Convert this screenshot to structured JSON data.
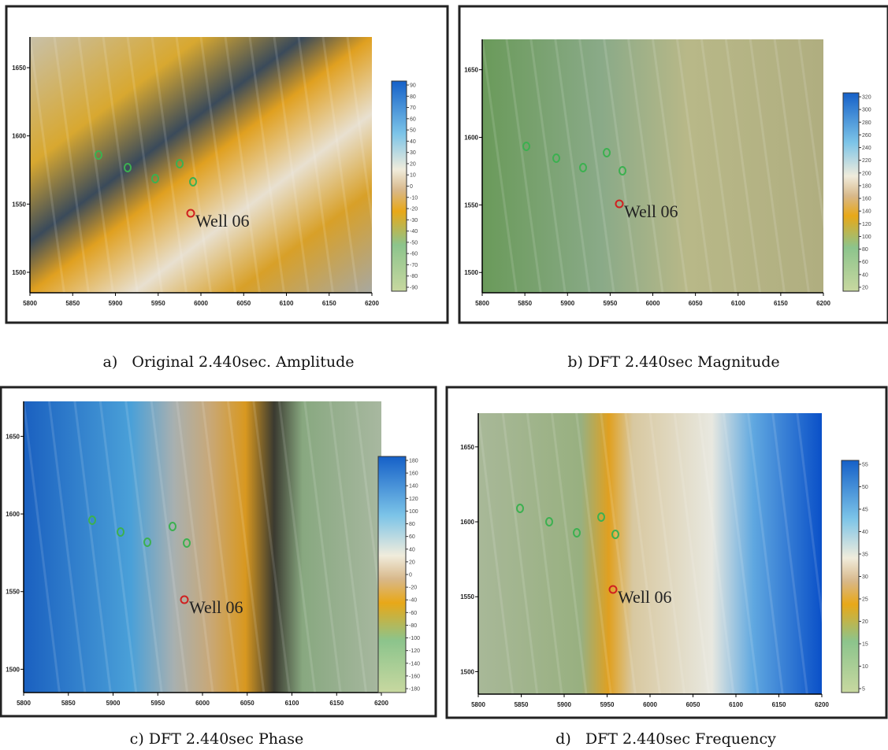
{
  "panels": [
    {
      "caption": "a)   Original 2.440sec. Amplitude",
      "well_label": "Well 06",
      "x_ticks": [
        "5800",
        "5850",
        "5900",
        "5950",
        "6000",
        "6050",
        "6100",
        "6150",
        "6200"
      ],
      "y_ticks": [
        "1650",
        "1600",
        "1550",
        "1500"
      ],
      "colorbar_ticks": [
        "90",
        "80",
        "70",
        "60",
        "50",
        "40",
        "30",
        "20",
        "10",
        "0",
        "-10",
        "-20",
        "-30",
        "-40",
        "-50",
        "-60",
        "-70",
        "-80",
        "-90"
      ]
    },
    {
      "caption": "b) DFT 2.440sec Magnitude",
      "well_label": "Well 06",
      "x_ticks": [
        "5800",
        "5850",
        "5900",
        "5950",
        "6000",
        "6050",
        "6100",
        "6150",
        "6200"
      ],
      "y_ticks": [
        "1650",
        "1600",
        "1550",
        "1500"
      ],
      "colorbar_ticks": [
        "320",
        "300",
        "280",
        "260",
        "240",
        "220",
        "200",
        "180",
        "160",
        "140",
        "120",
        "100",
        "80",
        "60",
        "40",
        "20"
      ]
    },
    {
      "caption": "c) DFT 2.440sec Phase",
      "well_label": "Well 06",
      "x_ticks": [
        "5800",
        "5850",
        "5900",
        "5950",
        "6000",
        "6050",
        "6100",
        "6150",
        "6200"
      ],
      "y_ticks": [
        "1650",
        "1600",
        "1550",
        "1500"
      ],
      "colorbar_ticks": [
        "180",
        "160",
        "140",
        "120",
        "100",
        "80",
        "60",
        "40",
        "20",
        "0",
        "-20",
        "-40",
        "-60",
        "-80",
        "-100",
        "-120",
        "-140",
        "-160",
        "-180"
      ]
    },
    {
      "caption": "d)   DFT 2.440sec Frequency",
      "well_label": "Well 06",
      "x_ticks": [
        "5800",
        "5850",
        "5900",
        "5950",
        "6000",
        "6050",
        "6100",
        "6150",
        "6200"
      ],
      "y_ticks": [
        "1650",
        "1600",
        "1550",
        "1500"
      ],
      "colorbar_ticks": [
        "55",
        "50",
        "45",
        "40",
        "35",
        "30",
        "25",
        "20",
        "15",
        "10",
        "5"
      ]
    }
  ]
}
